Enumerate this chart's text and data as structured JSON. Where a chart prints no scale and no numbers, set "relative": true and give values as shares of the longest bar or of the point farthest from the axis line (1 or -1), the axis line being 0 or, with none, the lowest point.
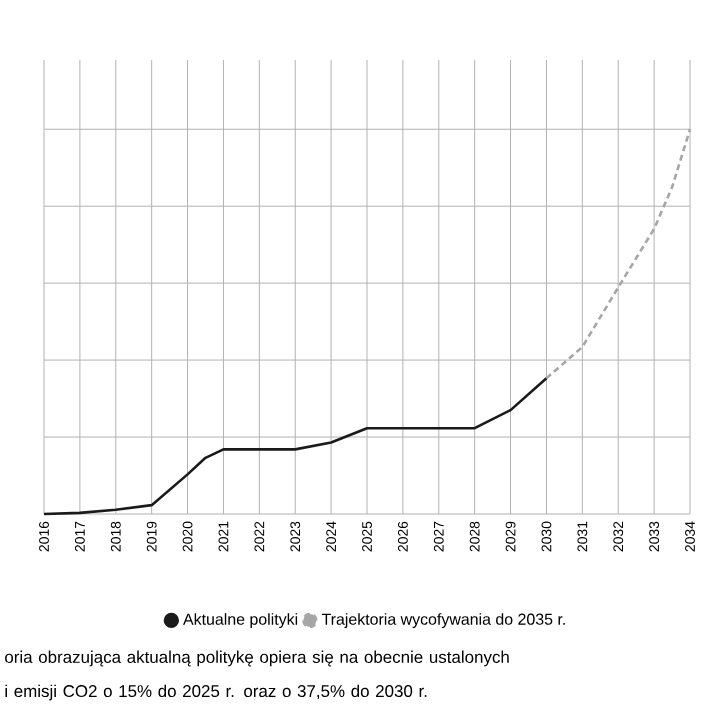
{
  "chart_data": {
    "type": "line",
    "relative": true,
    "grid": true,
    "legend": "bottom",
    "marker": "none",
    "xlim": [
      2016,
      2034
    ],
    "xticks": [
      2016,
      2017,
      2018,
      2019,
      2020,
      2021,
      2022,
      2023,
      2024,
      2025,
      2026,
      2027,
      2028,
      2029,
      2030,
      2031,
      2032,
      2033,
      2034
    ],
    "series": [
      {
        "name": "Aktualne polityki",
        "color": "#1a1a1a",
        "line_style": "solid",
        "x": [
          2016,
          2017,
          2018,
          2019,
          2020,
          2020.5,
          2021,
          2022,
          2023,
          2024,
          2025,
          2026,
          2027,
          2028,
          2029,
          2030
        ],
        "values": [
          0,
          0.003,
          0.011,
          0.023,
          0.103,
          0.146,
          0.168,
          0.168,
          0.168,
          0.186,
          0.223,
          0.223,
          0.223,
          0.223,
          0.27,
          0.353
        ]
      },
      {
        "name": "Trajektoria wycofywania do 2035 r.",
        "color": "#a6a6a6",
        "line_style": "dashed",
        "x": [
          2030,
          2031,
          2032,
          2033,
          2033.5,
          2034
        ],
        "values": [
          0.353,
          0.434,
          0.589,
          0.741,
          0.849,
          1.0
        ]
      }
    ],
    "annotations": [
      "oria obrazująca aktualną politykę opiera się na obecnie ustalonych",
      "i emisji CO2 o 15% do 2025 r. oraz o 37,5% do 2030 r."
    ]
  }
}
